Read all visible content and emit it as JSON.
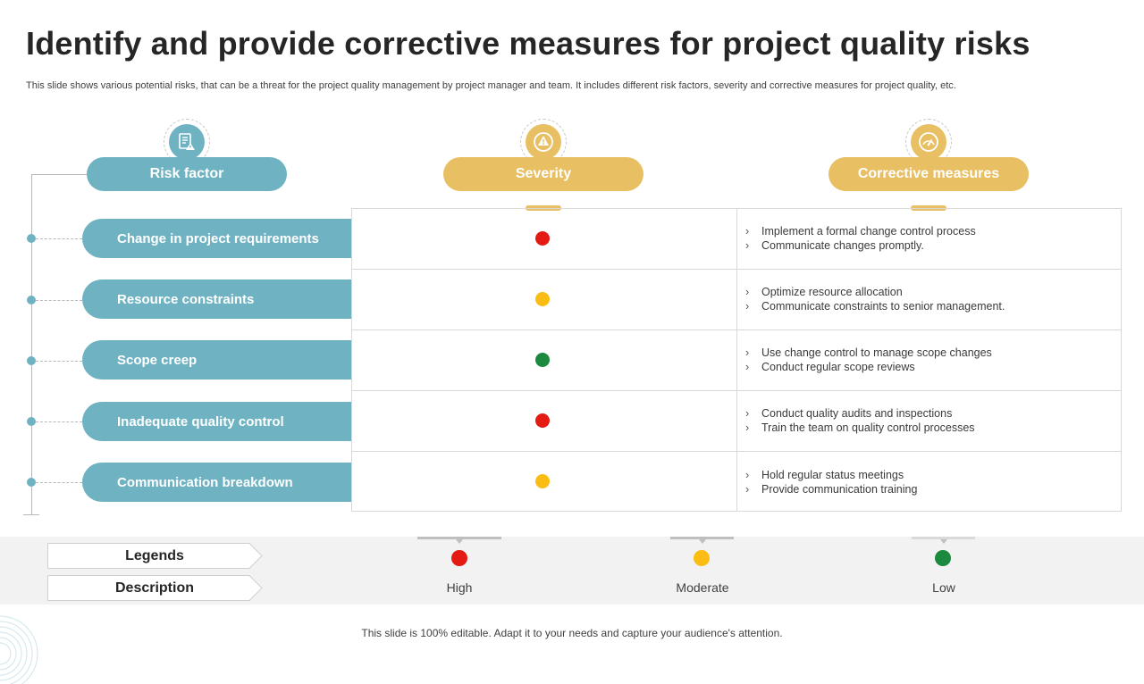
{
  "title": "Identify and provide corrective measures for project quality risks",
  "subtitle": "This slide shows various potential risks, that can be a threat for the project quality management by project manager and team. It includes different risk factors, severity and corrective measures for project quality, etc.",
  "headers": {
    "risk_factor": "Risk factor",
    "severity": "Severity",
    "corrective_measures": "Corrective measures"
  },
  "icons": {
    "risk_factor": "checklist-warning-icon",
    "severity": "warning-gauge-icon",
    "corrective_measures": "gauge-icon"
  },
  "colors": {
    "teal": "#6fb3c3",
    "gold": "#e8bf63",
    "high": "#e41b13",
    "moderate": "#fbbd14",
    "low": "#1b8a3e"
  },
  "rows": [
    {
      "risk": "Change in project requirements",
      "severity": "high",
      "measures": [
        "Implement a formal change control process",
        "Communicate changes promptly."
      ]
    },
    {
      "risk": "Resource constraints",
      "severity": "moderate",
      "measures": [
        "Optimize resource allocation",
        "Communicate constraints to senior management."
      ]
    },
    {
      "risk": "Scope creep",
      "severity": "low",
      "measures": [
        "Use change control to manage scope changes",
        "Conduct regular scope reviews"
      ]
    },
    {
      "risk": "Inadequate quality control",
      "severity": "high",
      "measures": [
        "Conduct quality audits and inspections",
        "Train the team on quality control processes"
      ]
    },
    {
      "risk": "Communication breakdown",
      "severity": "moderate",
      "measures": [
        "Hold regular status meetings",
        "Provide communication training"
      ]
    }
  ],
  "bullet_glyph": "›",
  "legend": {
    "legends_label": "Legends",
    "description_label": "Description",
    "items": [
      {
        "level": "high",
        "label": "High"
      },
      {
        "level": "moderate",
        "label": "Moderate"
      },
      {
        "level": "low",
        "label": "Low"
      }
    ]
  },
  "footer": "This slide is 100% editable. Adapt it to your needs and capture your audience's attention."
}
